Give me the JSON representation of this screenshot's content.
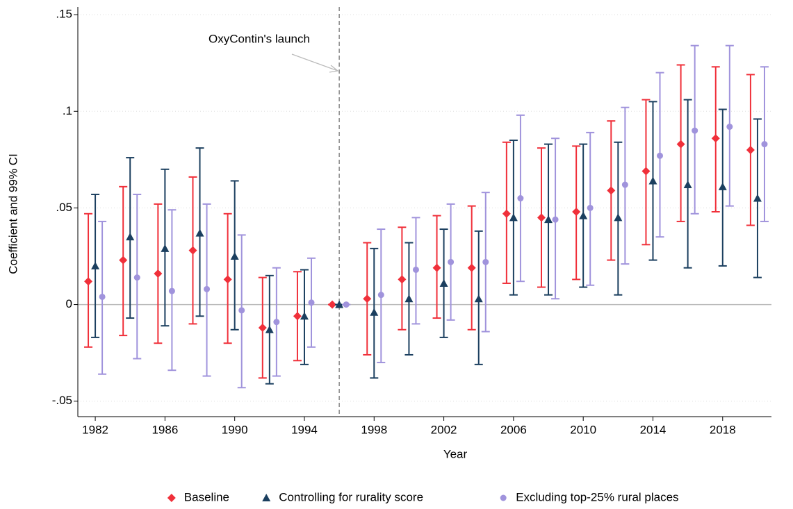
{
  "chart_data": {
    "type": "errorbar",
    "x_label": "Year",
    "y_label": "Coefficient and 99% CI",
    "annotation": "OxyContin's launch",
    "vline": 1996,
    "x": [
      1982,
      1984,
      1986,
      1988,
      1990,
      1992,
      1994,
      1996,
      1998,
      2000,
      2002,
      2004,
      2006,
      2008,
      2010,
      2012,
      2014,
      2016,
      2018,
      2020
    ],
    "xlim": [
      1981,
      2020.8
    ],
    "xticks": [
      1982,
      1986,
      1990,
      1994,
      1998,
      2002,
      2006,
      2010,
      2014,
      2018
    ],
    "ylim": [
      -0.058,
      0.154
    ],
    "yticks": [
      {
        "value": -0.05,
        "label": "-.05"
      },
      {
        "value": 0,
        "label": "0"
      },
      {
        "value": 0.05,
        "label": ".05"
      },
      {
        "value": 0.1,
        "label": ".1"
      },
      {
        "value": 0.15,
        "label": ".15"
      }
    ],
    "grid": true,
    "legend": "bottom",
    "series": [
      {
        "name": "Baseline",
        "color": "#f0303a",
        "marker": "diamond",
        "values": [
          0.012,
          0.023,
          0.016,
          0.028,
          0.013,
          -0.012,
          -0.006,
          0,
          0.003,
          0.013,
          0.019,
          0.019,
          0.047,
          0.045,
          0.048,
          0.059,
          0.069,
          0.083,
          0.086,
          0.08
        ],
        "lower": [
          -0.022,
          -0.016,
          -0.02,
          -0.01,
          -0.02,
          -0.038,
          -0.029,
          0,
          -0.026,
          -0.013,
          -0.007,
          -0.013,
          0.011,
          0.009,
          0.013,
          0.023,
          0.031,
          0.043,
          0.048,
          0.041
        ],
        "upper": [
          0.047,
          0.061,
          0.052,
          0.066,
          0.047,
          0.014,
          0.017,
          0,
          0.032,
          0.04,
          0.046,
          0.051,
          0.084,
          0.081,
          0.082,
          0.095,
          0.106,
          0.124,
          0.123,
          0.119
        ]
      },
      {
        "name": "Controlling for rurality score",
        "color": "#1b3f5f",
        "marker": "triangle",
        "values": [
          0.02,
          0.035,
          0.029,
          0.037,
          0.025,
          -0.013,
          -0.006,
          0,
          -0.004,
          0.003,
          0.011,
          0.003,
          0.045,
          0.044,
          0.046,
          0.045,
          0.064,
          0.062,
          0.061,
          0.055
        ],
        "lower": [
          -0.017,
          -0.007,
          -0.011,
          -0.006,
          -0.013,
          -0.041,
          -0.031,
          0,
          -0.038,
          -0.026,
          -0.017,
          -0.031,
          0.005,
          0.005,
          0.009,
          0.005,
          0.023,
          0.019,
          0.02,
          0.014
        ],
        "upper": [
          0.057,
          0.076,
          0.07,
          0.081,
          0.064,
          0.015,
          0.018,
          0,
          0.029,
          0.032,
          0.039,
          0.038,
          0.085,
          0.083,
          0.083,
          0.084,
          0.105,
          0.106,
          0.101,
          0.096
        ]
      },
      {
        "name": "Excluding top-25% rural places",
        "color": "#a093dc",
        "marker": "circle",
        "values": [
          0.004,
          0.014,
          0.007,
          0.008,
          -0.003,
          -0.009,
          0.001,
          0,
          0.005,
          0.018,
          0.022,
          0.022,
          0.055,
          0.044,
          0.05,
          0.062,
          0.077,
          0.09,
          0.092,
          0.083
        ],
        "lower": [
          -0.036,
          -0.028,
          -0.034,
          -0.037,
          -0.043,
          -0.037,
          -0.022,
          0,
          -0.03,
          -0.01,
          -0.008,
          -0.014,
          0.012,
          0.003,
          0.01,
          0.021,
          0.035,
          0.047,
          0.051,
          0.043
        ],
        "upper": [
          0.043,
          0.057,
          0.049,
          0.052,
          0.036,
          0.019,
          0.024,
          0,
          0.039,
          0.045,
          0.052,
          0.058,
          0.098,
          0.086,
          0.089,
          0.102,
          0.12,
          0.134,
          0.134,
          0.123
        ]
      }
    ]
  }
}
